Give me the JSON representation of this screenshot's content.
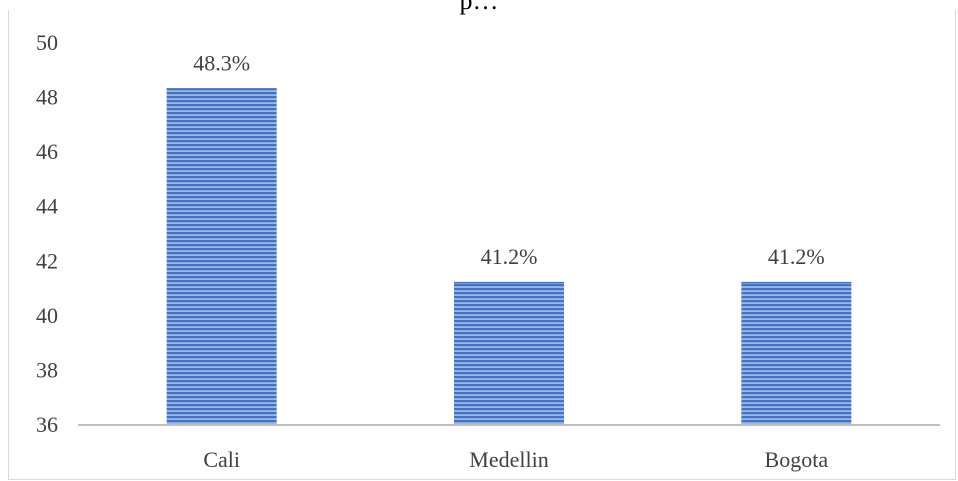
{
  "chart_data": {
    "type": "bar",
    "title": "p…",
    "xlabel": "",
    "ylabel": "",
    "categories": [
      "Cali",
      "Medellin",
      "Bogota"
    ],
    "values": [
      48.3,
      41.2,
      41.2
    ],
    "data_labels": [
      "48.3%",
      "41.2%",
      "41.2%"
    ],
    "ylim": [
      36,
      50
    ],
    "yticks": [
      36,
      38,
      40,
      42,
      44,
      46,
      48,
      50
    ],
    "grid": false,
    "legend": "none",
    "bar_fill": "horizontal-stripes",
    "colors": {
      "bar_stripe": "#4472c4",
      "bar_base": "#9bb7e6",
      "axis_line": "#bfbfbf",
      "text": "#404040"
    }
  }
}
